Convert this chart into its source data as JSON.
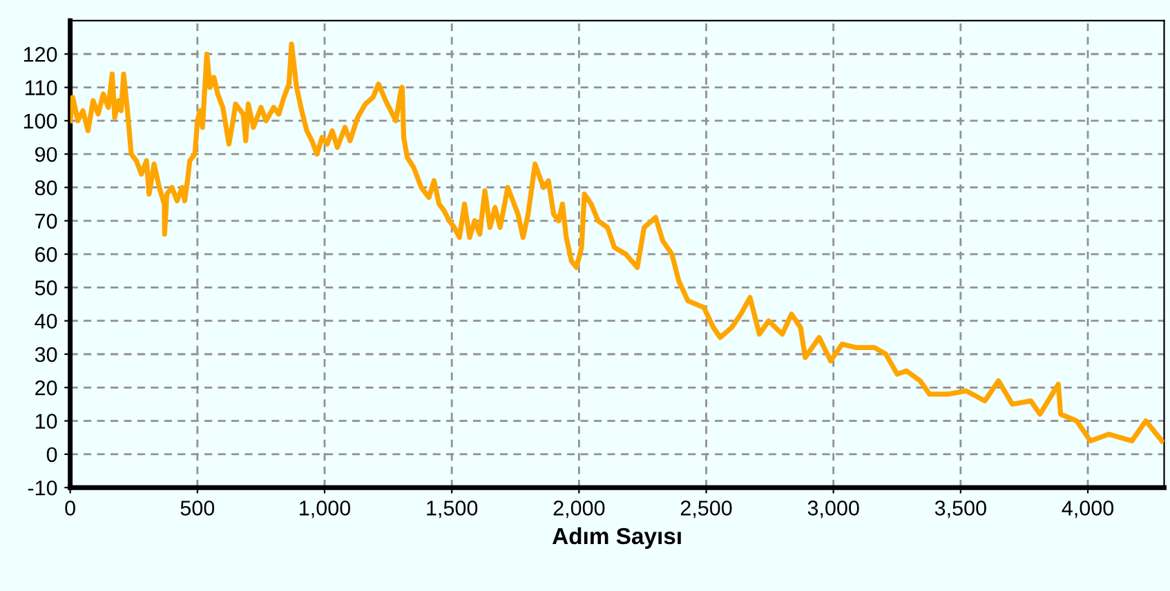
{
  "chart_data": {
    "type": "line",
    "xlabel": "Adım Sayısı",
    "xlim": [
      0,
      4300
    ],
    "xticks": [
      {
        "value": 0,
        "label": "0"
      },
      {
        "value": 500,
        "label": "500"
      },
      {
        "value": 1000,
        "label": "1,000"
      },
      {
        "value": 1500,
        "label": "1,500"
      },
      {
        "value": 2000,
        "label": "2,000"
      },
      {
        "value": 2500,
        "label": "2,500"
      },
      {
        "value": 3000,
        "label": "3,000"
      },
      {
        "value": 3500,
        "label": "3,500"
      },
      {
        "value": 4000,
        "label": "4,000"
      }
    ],
    "ylim": [
      -10,
      130
    ],
    "yticks": [
      -10,
      0,
      10,
      20,
      30,
      40,
      50,
      60,
      70,
      80,
      90,
      100,
      110,
      120
    ],
    "grid": true,
    "line_style": "solid",
    "marker": "none",
    "series": [
      {
        "color": "#ffa500",
        "x": [
          0,
          10,
          30,
          50,
          70,
          90,
          110,
          130,
          150,
          165,
          175,
          190,
          200,
          210,
          225,
          240,
          260,
          280,
          300,
          310,
          330,
          350,
          370,
          371,
          380,
          400,
          420,
          440,
          450,
          461,
          470,
          490,
          500,
          510,
          520,
          537,
          550,
          565,
          580,
          600,
          624,
          640,
          650,
          680,
          690,
          700,
          720,
          750,
          770,
          800,
          820,
          840,
          860,
          870,
          890,
          910,
          930,
          950,
          970,
          990,
          1010,
          1030,
          1050,
          1080,
          1100,
          1130,
          1160,
          1190,
          1212,
          1240,
          1260,
          1280,
          1300,
          1305,
          1311,
          1325,
          1350,
          1370,
          1380,
          1410,
          1430,
          1450,
          1470,
          1490,
          1510,
          1530,
          1550,
          1570,
          1590,
          1610,
          1630,
          1650,
          1670,
          1690,
          1720,
          1740,
          1760,
          1780,
          1800,
          1827,
          1860,
          1880,
          1900,
          1920,
          1935,
          1950,
          1970,
          1990,
          2010,
          2021,
          2048,
          2075,
          2112,
          2139,
          2184,
          2229,
          2256,
          2301,
          2329,
          2365,
          2392,
          2428,
          2491,
          2528,
          2555,
          2600,
          2636,
          2672,
          2709,
          2745,
          2799,
          2835,
          2871,
          2889,
          2944,
          2989,
          3034,
          3088,
          3161,
          3206,
          3251,
          3287,
          3341,
          3378,
          3450,
          3522,
          3595,
          3649,
          3703,
          3776,
          3812,
          3884,
          3893,
          3956,
          4010,
          4083,
          4173,
          4228,
          4291
        ],
        "values": [
          100,
          107,
          100,
          103,
          97,
          106,
          102,
          108,
          104,
          114,
          101,
          106,
          103,
          114,
          103,
          90,
          88,
          84,
          88,
          78,
          87,
          80,
          75,
          66,
          78,
          80,
          76,
          80,
          76,
          82,
          88,
          90,
          100,
          103,
          98,
          120,
          110,
          113,
          108,
          104,
          93,
          100,
          105,
          102,
          94,
          105,
          98,
          104,
          100,
          104,
          102,
          107,
          111,
          123,
          110,
          103,
          97,
          94,
          90,
          95,
          93,
          97,
          92,
          98,
          94,
          101,
          105,
          107,
          111,
          106,
          103,
          100,
          109,
          110,
          95,
          89,
          86,
          82,
          80,
          77,
          82,
          75,
          73,
          70,
          68,
          65,
          75,
          65,
          70,
          66,
          79,
          68,
          74,
          68,
          80,
          76,
          72,
          65,
          72,
          87,
          80,
          82,
          72,
          70,
          75,
          65,
          58,
          56,
          62,
          78,
          75,
          70,
          68,
          62,
          60,
          56,
          68,
          71,
          64,
          60,
          52,
          46,
          44,
          38,
          35,
          38,
          42,
          47,
          36,
          40,
          36,
          42,
          38,
          29,
          35,
          28,
          33,
          32,
          32,
          30,
          24,
          25,
          22,
          18,
          18,
          19,
          16,
          22,
          15,
          16,
          12,
          21,
          12,
          10,
          4,
          6,
          4,
          10,
          4
        ]
      }
    ]
  }
}
